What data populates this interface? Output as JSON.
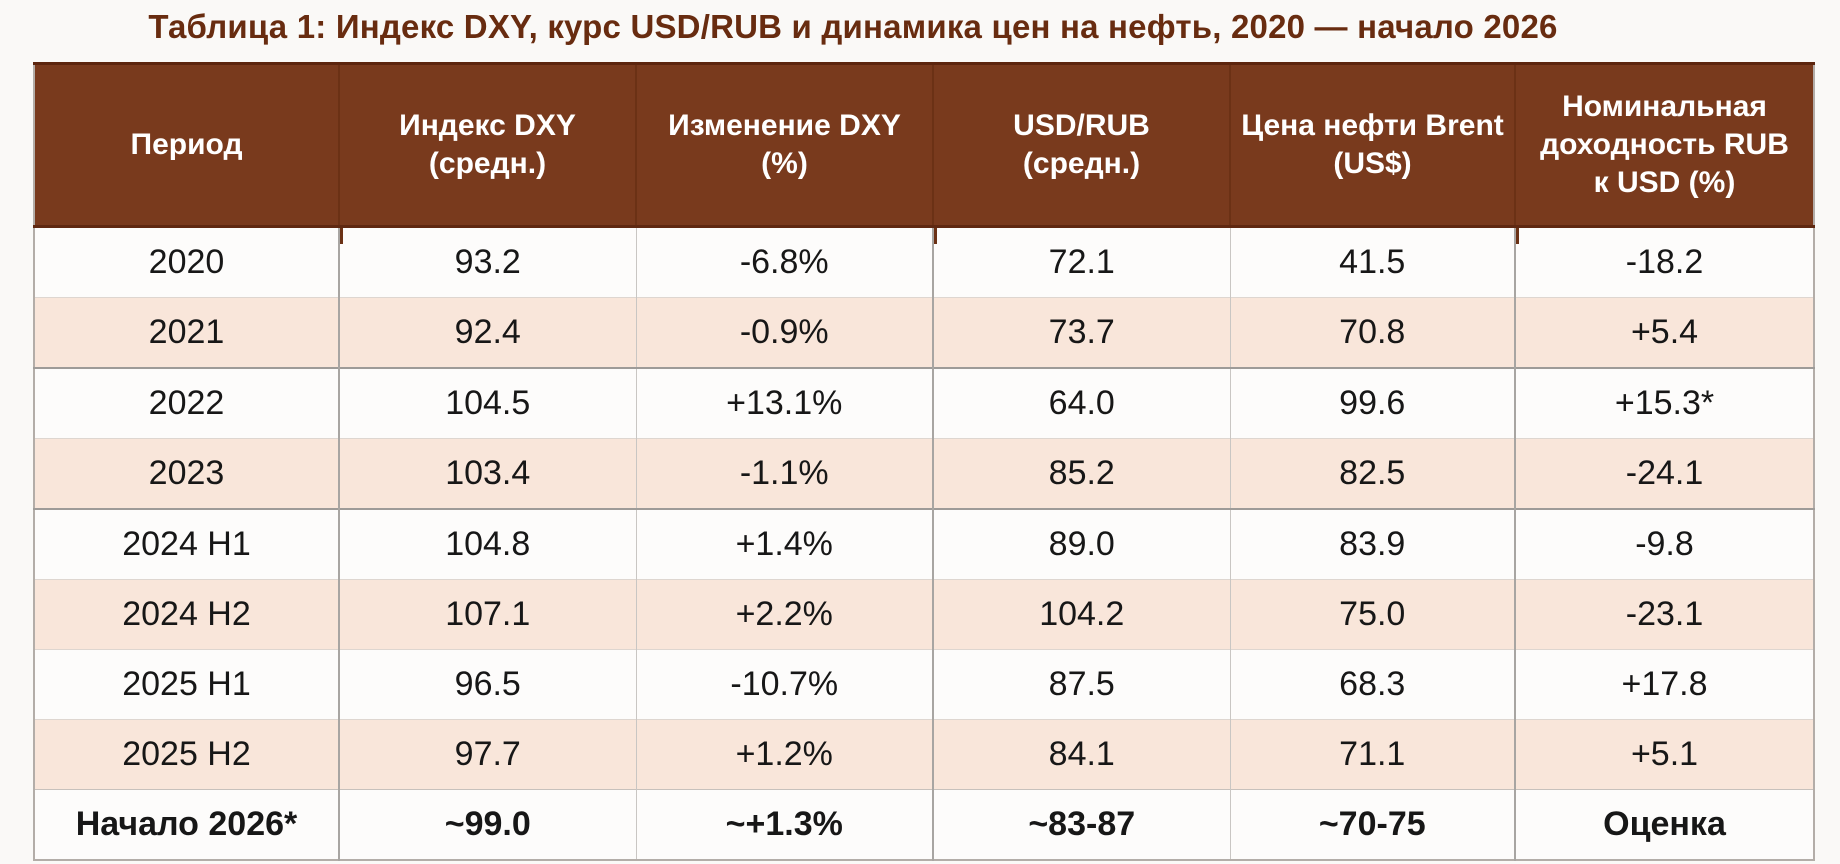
{
  "chart_data": {
    "type": "table",
    "title": "Таблица 1: Индекс DXY, курс USD/RUB и динамика цен на нефть, 2020 — начало 2026",
    "columns": [
      {
        "id": "period",
        "lines": [
          "Период"
        ]
      },
      {
        "id": "dxy-avg",
        "lines": [
          "Индекс DXY",
          "(средн.)"
        ]
      },
      {
        "id": "dxy-change",
        "lines": [
          "Изменение DXY",
          "(%)"
        ]
      },
      {
        "id": "usd-rub",
        "lines": [
          "USD/RUB",
          "(средн.)"
        ]
      },
      {
        "id": "brent",
        "lines": [
          "Цена нефти Brent",
          "(US$)"
        ]
      },
      {
        "id": "rub-return",
        "lines": [
          "Номинальная",
          "доходность RUB",
          "к USD (%)"
        ]
      }
    ],
    "rows": [
      {
        "cells": [
          "2020",
          "93.2",
          "-6.8%",
          "72.1",
          "41.5",
          "-18.2"
        ],
        "bold": false,
        "group_start": false
      },
      {
        "cells": [
          "2021",
          "92.4",
          "-0.9%",
          "73.7",
          "70.8",
          "+5.4"
        ],
        "bold": false,
        "group_start": false
      },
      {
        "cells": [
          "2022",
          "104.5",
          "+13.1%",
          "64.0",
          "99.6",
          "+15.3*"
        ],
        "bold": false,
        "group_start": true
      },
      {
        "cells": [
          "2023",
          "103.4",
          "-1.1%",
          "85.2",
          "82.5",
          "-24.1"
        ],
        "bold": false,
        "group_start": false
      },
      {
        "cells": [
          "2024 H1",
          "104.8",
          "+1.4%",
          "89.0",
          "83.9",
          "-9.8"
        ],
        "bold": false,
        "group_start": true
      },
      {
        "cells": [
          "2024 H2",
          "107.1",
          "+2.2%",
          "104.2",
          "75.0",
          "-23.1"
        ],
        "bold": false,
        "group_start": false
      },
      {
        "cells": [
          "2025 H1",
          "96.5",
          "-10.7%",
          "87.5",
          "68.3",
          "+17.8"
        ],
        "bold": false,
        "group_start": false
      },
      {
        "cells": [
          "2025 H2",
          "97.7",
          "+1.2%",
          "84.1",
          "71.1",
          "+5.1"
        ],
        "bold": false,
        "group_start": false
      },
      {
        "cells": [
          "Начало 2026*",
          "~99.0",
          "~+1.3%",
          "~83-87",
          "~70-75",
          "Оценка"
        ],
        "bold": true,
        "group_start": false
      }
    ]
  },
  "colors": {
    "header_bg": "#793a1d",
    "header_divider": "#6b3115",
    "header_text": "#ffffff",
    "title_text": "#682c10",
    "row_even_bg": "#f9e6da",
    "row_odd_bg": "#fdfcfb",
    "body_text": "#171717"
  }
}
